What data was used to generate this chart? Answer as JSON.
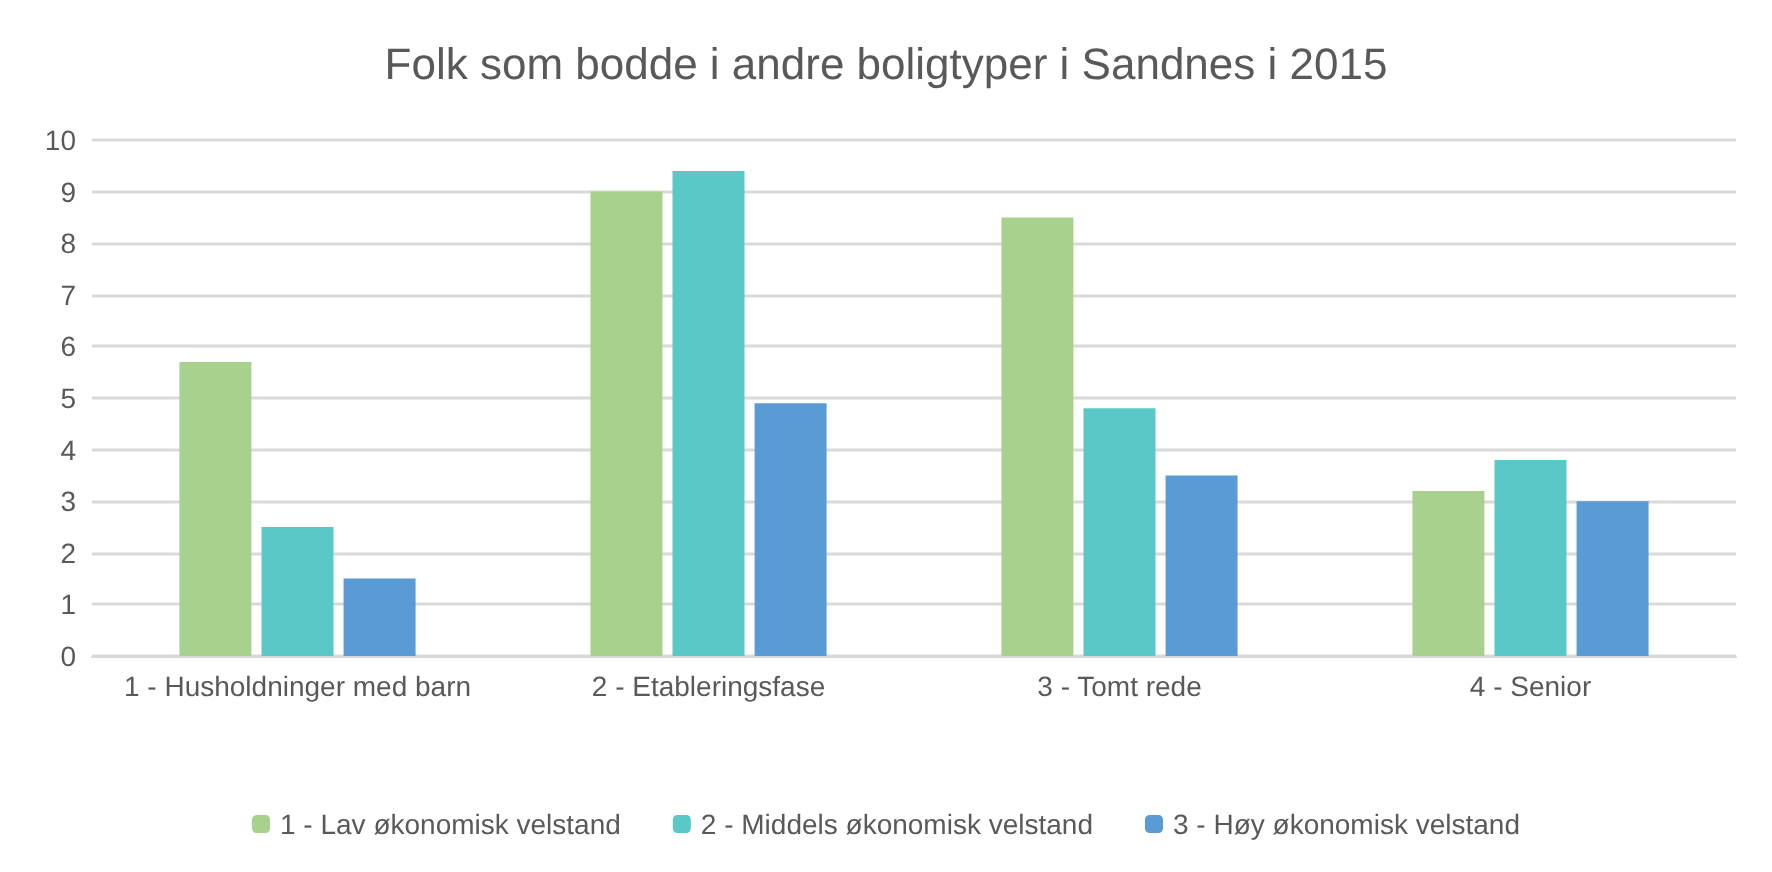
{
  "chart_data": {
    "type": "bar",
    "title": "Folk som bodde i andre boligtyper i Sandnes i 2015",
    "categories": [
      "1 - Husholdninger med barn",
      "2 - Etableringsfase",
      "3 - Tomt rede",
      "4 - Senior"
    ],
    "series": [
      {
        "name": "1 - Lav økonomisk velstand",
        "color": "#a9d18e",
        "values": [
          5.7,
          9.0,
          8.5,
          3.2
        ]
      },
      {
        "name": "2 - Middels økonomisk velstand",
        "color": "#5bc8c8",
        "values": [
          2.5,
          9.4,
          4.8,
          3.8
        ]
      },
      {
        "name": "3 - Høy økonomisk velstand",
        "color": "#5b9bd5",
        "values": [
          1.5,
          4.9,
          3.5,
          3.0
        ]
      }
    ],
    "ylim": [
      0,
      10
    ],
    "yticks": [
      0,
      1,
      2,
      3,
      4,
      5,
      6,
      7,
      8,
      9,
      10
    ],
    "grid": "y",
    "legend": "bottom"
  }
}
